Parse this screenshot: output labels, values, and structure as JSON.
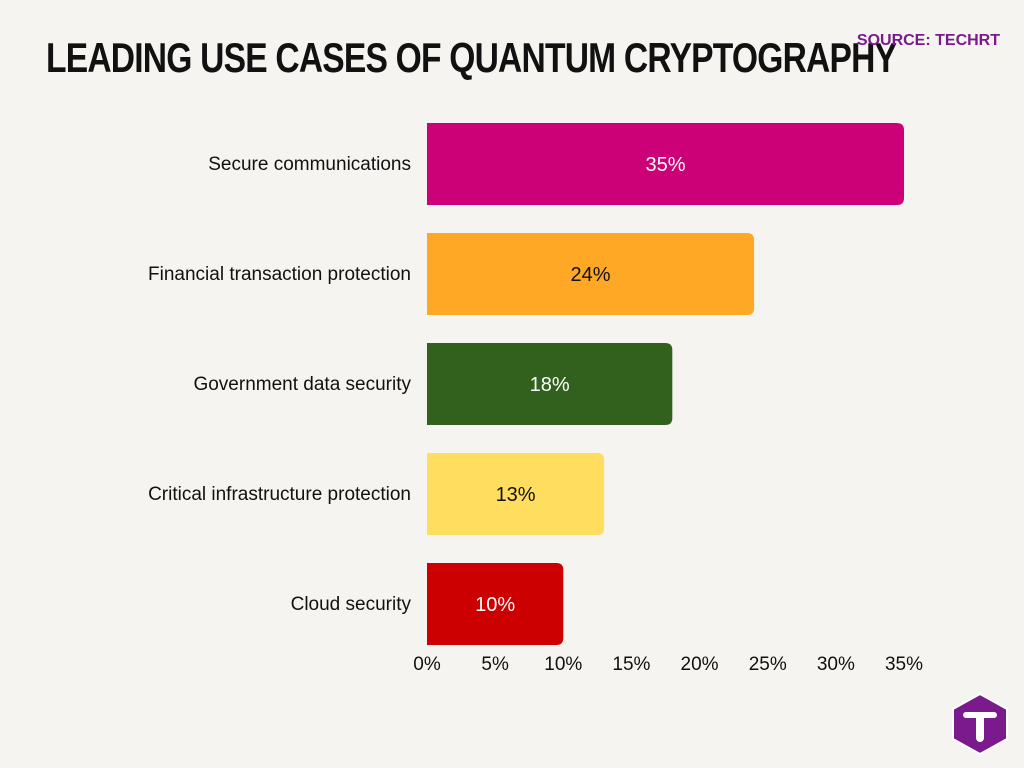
{
  "header": {
    "title": "Leading use cases of quantum cryptography",
    "source": "SOURCE: TECHRT"
  },
  "brand": {
    "logo_icon": "techrt-logo-icon",
    "logo_color": "#7a1a8c"
  },
  "chart_data": {
    "type": "bar",
    "orientation": "horizontal",
    "categories": [
      "Secure communications",
      "Financial transaction protection",
      "Government data security",
      "Critical infrastructure protection",
      "Cloud security"
    ],
    "values": [
      35,
      24,
      18,
      13,
      10
    ],
    "data_labels": [
      "35%",
      "24%",
      "18%",
      "13%",
      "10%"
    ],
    "colors": [
      "#cc0077",
      "#ffa826",
      "#31611c",
      "#ffdd5e",
      "#cc0000"
    ],
    "label_colors": [
      "#ffffff",
      "#111111",
      "#ffffff",
      "#111111",
      "#ffffff"
    ],
    "x_ticks": [
      0,
      5,
      10,
      15,
      20,
      25,
      30,
      35
    ],
    "x_tick_labels": [
      "0%",
      "5%",
      "10%",
      "15%",
      "20%",
      "25%",
      "30%",
      "35%"
    ],
    "xlim": [
      0,
      35
    ],
    "xlabel": "",
    "ylabel": "",
    "grid": false,
    "legend": "none"
  }
}
